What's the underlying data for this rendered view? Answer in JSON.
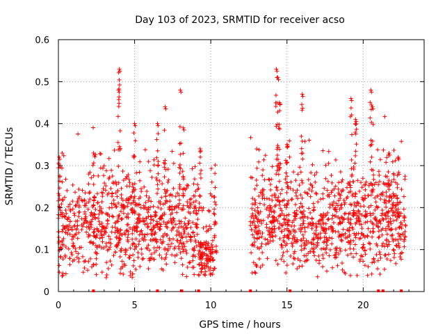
{
  "chart_data": {
    "type": "scatter",
    "title": "Day 103 of 2023, SRMTID for receiver acso",
    "xlabel": "GPS time / hours",
    "ylabel": "SRMTID / TECUs",
    "xlim": [
      0,
      24
    ],
    "ylim": [
      0,
      0.6
    ],
    "x_ticks": [
      0,
      5,
      10,
      15,
      20
    ],
    "x_tick_labels": [
      "0",
      "5",
      "10",
      "15",
      "20"
    ],
    "y_ticks": [
      0,
      0.1,
      0.2,
      0.3,
      0.4,
      0.5,
      0.6
    ],
    "y_tick_labels": [
      "0",
      "0.1",
      "0.2",
      "0.3",
      "0.4",
      "0.5",
      "0.6"
    ],
    "grid": true,
    "marker_color": "#ff0000",
    "gap_markers": [
      2.3,
      6.5,
      8.1,
      9.2,
      12.6,
      15.2,
      21.0,
      21.3,
      22.5
    ],
    "clusters": [
      {
        "start": 0.0,
        "end": 10.4,
        "base": 0.15,
        "spread": 0.06,
        "peaks": [
          [
            4.0,
            0.53
          ],
          [
            3.95,
            0.48
          ],
          [
            5.0,
            0.4
          ],
          [
            6.5,
            0.4
          ],
          [
            7.0,
            0.44
          ],
          [
            8.0,
            0.48
          ],
          [
            8.2,
            0.39
          ],
          [
            0.05,
            0.32
          ],
          [
            2.3,
            0.33
          ],
          [
            9.3,
            0.34
          ]
        ]
      },
      {
        "start": 12.6,
        "end": 22.8,
        "base": 0.16,
        "spread": 0.06,
        "peaks": [
          [
            14.3,
            0.53
          ],
          [
            14.4,
            0.51
          ],
          [
            14.5,
            0.45
          ],
          [
            16.0,
            0.47
          ],
          [
            19.2,
            0.46
          ],
          [
            19.5,
            0.41
          ],
          [
            20.5,
            0.48
          ],
          [
            20.6,
            0.44
          ],
          [
            15.0,
            0.35
          ],
          [
            21.7,
            0.33
          ],
          [
            22.3,
            0.32
          ]
        ]
      }
    ],
    "low_dip": {
      "start": 9.2,
      "end": 10.2,
      "base": 0.08,
      "spread": 0.03
    }
  }
}
